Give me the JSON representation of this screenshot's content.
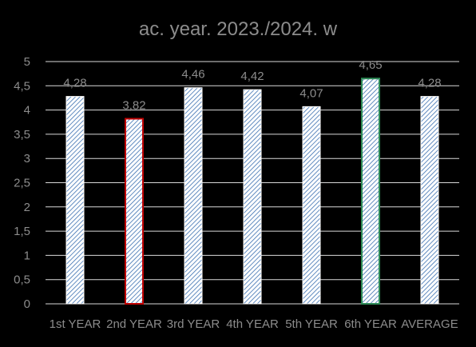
{
  "chart_data": {
    "type": "bar",
    "title": "ac. year. 2023./2024. w",
    "xlabel": "",
    "ylabel": "",
    "categories": [
      "1st YEAR",
      "2nd YEAR",
      "3rd YEAR",
      "4th YEAR",
      "5th YEAR",
      "6th YEAR",
      "AVERAGE"
    ],
    "values": [
      4.28,
      3.82,
      4.46,
      4.42,
      4.07,
      4.65,
      4.28
    ],
    "value_labels": [
      "4,28",
      "3,82",
      "4,46",
      "4,42",
      "4,07",
      "4,65",
      "4,28"
    ],
    "ylim": [
      0,
      5
    ],
    "y_ticks": [
      0,
      0.5,
      1,
      1.5,
      2,
      2.5,
      3,
      3.5,
      4,
      4.5,
      5
    ],
    "y_tick_labels": [
      "0",
      "0,5",
      "1",
      "1,5",
      "2",
      "2,5",
      "3",
      "3,5",
      "4",
      "4,5",
      "5"
    ],
    "grid": true,
    "legend": "none",
    "bar_fill": "diagonal-hatch",
    "colors": {
      "background": "#000000",
      "text": "#8c8c8c",
      "grid": "#d9d9d9",
      "bar_fill": "#ffffff",
      "hatch": "#3a6fb0",
      "bar_outline": "#ffffff",
      "highlight_low": "#c00000",
      "highlight_high": "#2e8b57"
    },
    "bar_outlines": [
      "default",
      "highlight_low",
      "default",
      "default",
      "default",
      "highlight_high",
      "default"
    ]
  }
}
